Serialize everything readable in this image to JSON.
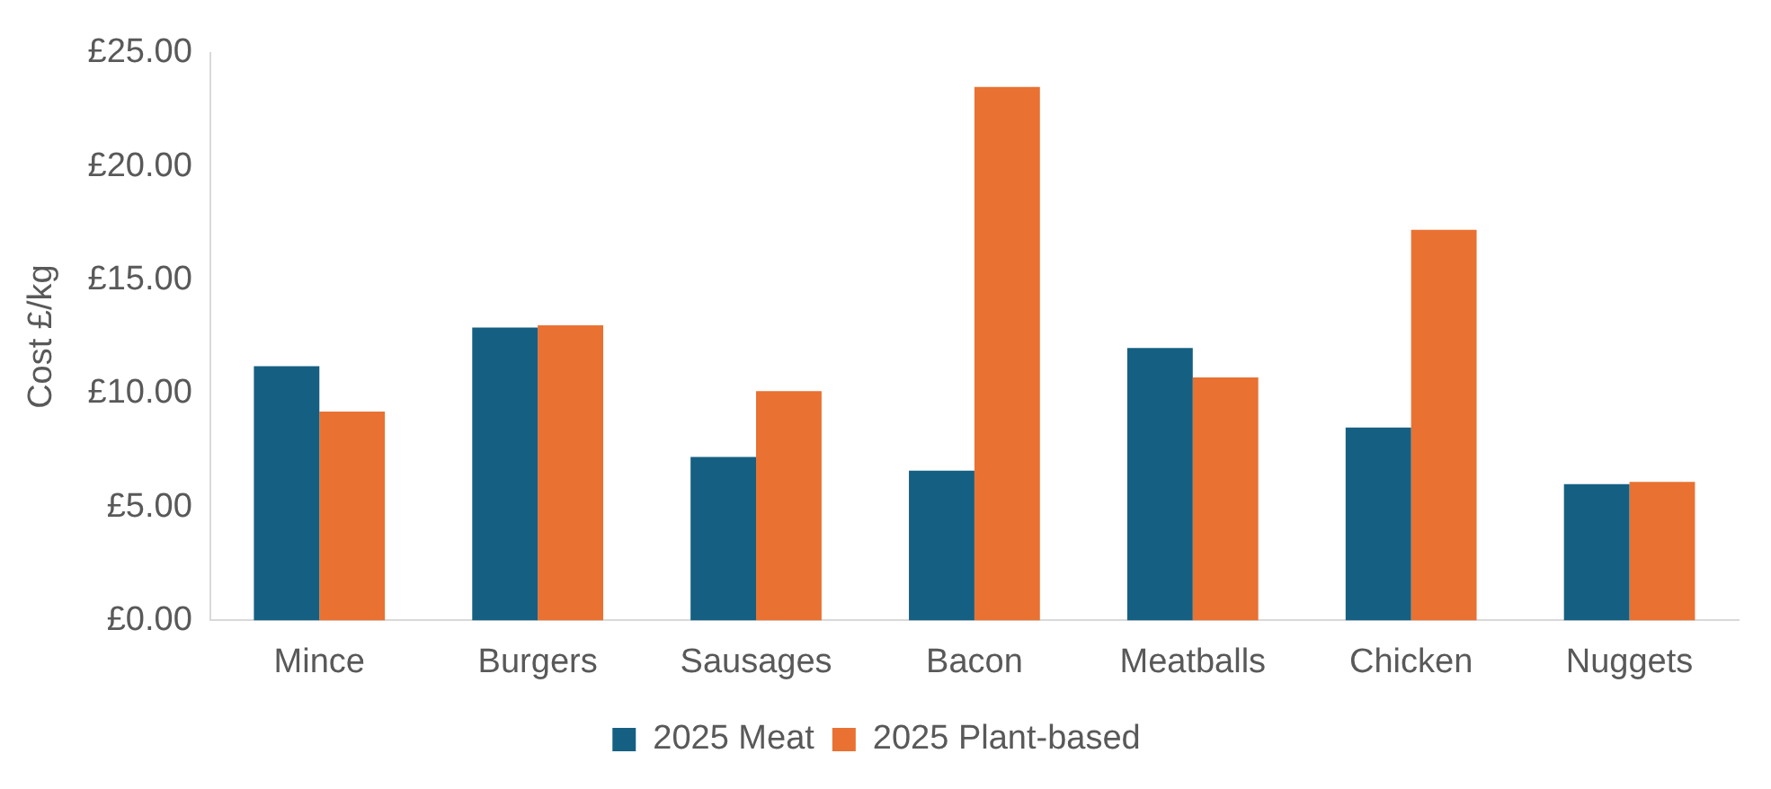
{
  "chart_data": {
    "type": "bar",
    "ylabel": "Cost £/kg",
    "categories": [
      "Mince",
      "Burgers",
      "Sausages",
      "Bacon",
      "Meatballs",
      "Chicken",
      "Nuggets"
    ],
    "series": [
      {
        "name": "2025 Meat",
        "color": "#156082",
        "values": [
          11.2,
          12.9,
          7.2,
          6.6,
          12.0,
          8.5,
          6.0
        ]
      },
      {
        "name": "2025 Plant-based",
        "color": "#e97132",
        "values": [
          9.2,
          13.0,
          10.1,
          23.5,
          10.7,
          17.2,
          6.1
        ]
      }
    ],
    "ylim": [
      0,
      25
    ],
    "yticks": [
      {
        "value": 0,
        "label": "£0.00"
      },
      {
        "value": 5,
        "label": "£5.00"
      },
      {
        "value": 10,
        "label": "£10.00"
      },
      {
        "value": 15,
        "label": "£15.00"
      },
      {
        "value": 20,
        "label": "£20.00"
      },
      {
        "value": 25,
        "label": "£25.00"
      }
    ],
    "grid": false,
    "legend": "bottom"
  }
}
